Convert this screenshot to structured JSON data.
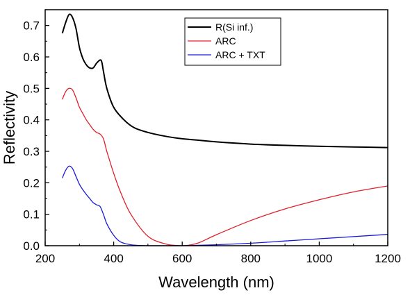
{
  "chart_data": {
    "type": "line",
    "xlabel": "Wavelength (nm)",
    "ylabel": "Reflectivity",
    "xlim": [
      200,
      1200
    ],
    "ylim": [
      0.0,
      0.75
    ],
    "xticks": [
      200,
      400,
      600,
      800,
      1000,
      1200
    ],
    "xtick_labels": [
      "200",
      "400",
      "600",
      "800",
      "1000",
      "1200"
    ],
    "yticks": [
      0.0,
      0.1,
      0.2,
      0.3,
      0.4,
      0.5,
      0.6,
      0.7
    ],
    "ytick_labels": [
      "0.0",
      "0.1",
      "0.2",
      "0.3",
      "0.4",
      "0.5",
      "0.6",
      "0.7"
    ],
    "grid": false,
    "legend_position": "top-center",
    "series": [
      {
        "name": "R(Si inf.)",
        "color": "#000000",
        "x": [
          250,
          260,
          270,
          280,
          290,
          300,
          310,
          320,
          330,
          340,
          350,
          360,
          365,
          370,
          380,
          400,
          430,
          460,
          500,
          550,
          600,
          650,
          700,
          800,
          900,
          1000,
          1100,
          1200
        ],
        "y": [
          0.675,
          0.71,
          0.735,
          0.725,
          0.69,
          0.63,
          0.595,
          0.575,
          0.565,
          0.565,
          0.58,
          0.59,
          0.585,
          0.555,
          0.5,
          0.44,
          0.4,
          0.375,
          0.36,
          0.348,
          0.34,
          0.335,
          0.33,
          0.323,
          0.319,
          0.316,
          0.314,
          0.312
        ]
      },
      {
        "name": "ARC",
        "color": "#e0202a",
        "x": [
          250,
          260,
          270,
          280,
          290,
          300,
          310,
          320,
          330,
          340,
          350,
          360,
          370,
          380,
          400,
          420,
          450,
          500,
          550,
          580,
          600,
          620,
          650,
          700,
          800,
          900,
          1000,
          1100,
          1200
        ],
        "y": [
          0.465,
          0.49,
          0.5,
          0.495,
          0.47,
          0.44,
          0.42,
          0.4,
          0.385,
          0.37,
          0.36,
          0.355,
          0.34,
          0.3,
          0.23,
          0.17,
          0.1,
          0.03,
          0.006,
          0.001,
          0.0,
          0.002,
          0.01,
          0.035,
          0.08,
          0.117,
          0.146,
          0.171,
          0.19
        ]
      },
      {
        "name": "ARC + TXT",
        "color": "#1a1ad6",
        "x": [
          250,
          260,
          270,
          280,
          290,
          300,
          310,
          320,
          330,
          340,
          350,
          360,
          370,
          380,
          400,
          420,
          450,
          500,
          550,
          600,
          700,
          800,
          900,
          1000,
          1100,
          1200
        ],
        "y": [
          0.215,
          0.24,
          0.253,
          0.245,
          0.22,
          0.195,
          0.178,
          0.163,
          0.15,
          0.137,
          0.13,
          0.125,
          0.1,
          0.07,
          0.033,
          0.012,
          0.003,
          0.0,
          0.0,
          0.0,
          0.003,
          0.008,
          0.015,
          0.022,
          0.029,
          0.036
        ]
      }
    ]
  }
}
